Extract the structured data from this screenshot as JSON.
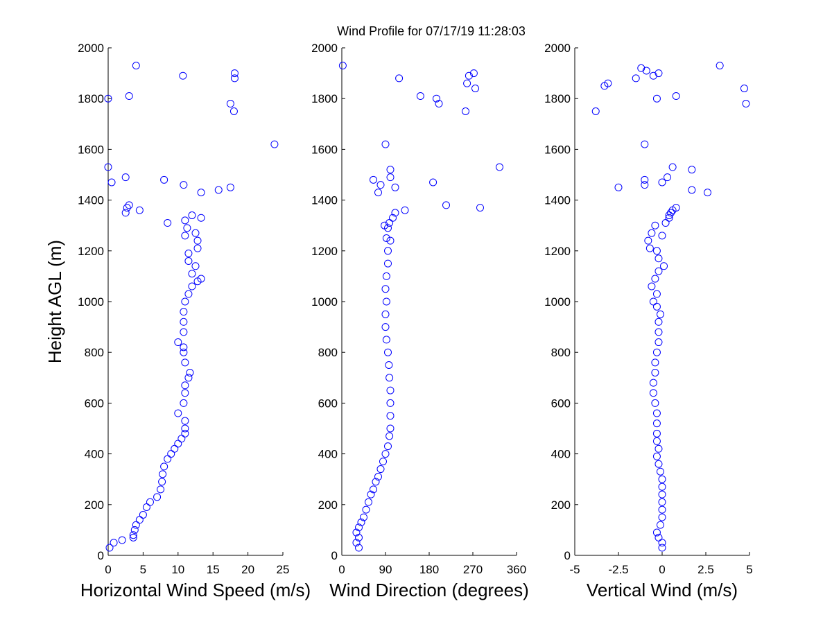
{
  "chart_data": [
    {
      "type": "scatter",
      "title": "Wind Profile for  07/17/19 11:28:03",
      "x_label": "Horizontal Wind Speed (m/s)",
      "y_label": "Height AGL (m)",
      "color": "#0000ff",
      "xlim": [
        0,
        25
      ],
      "xticks": [
        0,
        5,
        10,
        15,
        20,
        25
      ],
      "ylim": [
        0,
        2000
      ],
      "yticks": [
        0,
        200,
        400,
        600,
        800,
        1000,
        1200,
        1400,
        1600,
        1800,
        2000
      ],
      "x": [
        0.2,
        0.8,
        2,
        3.6,
        3.6,
        3.8,
        4,
        4.5,
        5,
        5.5,
        6,
        7,
        7.5,
        7.7,
        7.8,
        8,
        8.5,
        9,
        9.5,
        10,
        10.5,
        11,
        11,
        11,
        10,
        10.8,
        11,
        11,
        11.5,
        11.7,
        11,
        10.8,
        10.8,
        10,
        10.8,
        10.8,
        10.8,
        11,
        11.5,
        12,
        12.8,
        13.3,
        12,
        12.5,
        11.5,
        11.5,
        12.8,
        12.8,
        11,
        12.5,
        11.3,
        11,
        12,
        13.3,
        8.5,
        2.5,
        2.7,
        3,
        4.5,
        13.3,
        15.8,
        17.5,
        10.8,
        0.5,
        8,
        2.5,
        0,
        23.8,
        18,
        17.5,
        0,
        3,
        18.1,
        18.1,
        10.7,
        4
      ],
      "y": [
        30,
        50,
        60,
        70,
        80,
        100,
        120,
        140,
        160,
        190,
        210,
        230,
        260,
        290,
        320,
        350,
        380,
        400,
        420,
        440,
        460,
        480,
        500,
        530,
        560,
        600,
        640,
        670,
        700,
        720,
        760,
        800,
        820,
        840,
        880,
        920,
        960,
        1000,
        1030,
        1060,
        1080,
        1090,
        1110,
        1140,
        1160,
        1190,
        1210,
        1240,
        1260,
        1270,
        1290,
        1320,
        1340,
        1330,
        1310,
        1350,
        1370,
        1380,
        1360,
        1430,
        1440,
        1450,
        1460,
        1470,
        1480,
        1490,
        1530,
        1620,
        1750,
        1780,
        1800,
        1810,
        1880,
        1900,
        1890,
        1930
      ]
    },
    {
      "type": "scatter",
      "x_label": "Wind Direction (degrees)",
      "color": "#0000ff",
      "xlim": [
        0,
        360
      ],
      "xticks": [
        0,
        90,
        180,
        270,
        360
      ],
      "ylim": [
        0,
        2000
      ],
      "yticks": [
        0,
        200,
        400,
        600,
        800,
        1000,
        1200,
        1400,
        1600,
        1800,
        2000
      ],
      "x": [
        35,
        30,
        35,
        30,
        35,
        40,
        45,
        50,
        55,
        60,
        65,
        70,
        75,
        80,
        85,
        90,
        95,
        98,
        100,
        100,
        100,
        100,
        98,
        97,
        95,
        92,
        90,
        90,
        92,
        90,
        92,
        95,
        95,
        92,
        95,
        98,
        105,
        110,
        130,
        88,
        100,
        215,
        285,
        75,
        110,
        80,
        65,
        188,
        100,
        100,
        325,
        90,
        255,
        200,
        195,
        162,
        118,
        258,
        262,
        272,
        275,
        2
      ],
      "y": [
        30,
        50,
        70,
        90,
        110,
        130,
        150,
        180,
        210,
        240,
        260,
        290,
        310,
        340,
        370,
        400,
        430,
        470,
        500,
        550,
        600,
        650,
        700,
        750,
        800,
        850,
        900,
        950,
        1000,
        1050,
        1100,
        1150,
        1200,
        1250,
        1290,
        1310,
        1330,
        1350,
        1360,
        1300,
        1240,
        1380,
        1370,
        1430,
        1450,
        1460,
        1480,
        1470,
        1490,
        1520,
        1530,
        1620,
        1750,
        1780,
        1800,
        1810,
        1880,
        1860,
        1890,
        1900,
        1840,
        1930
      ]
    },
    {
      "type": "scatter",
      "x_label": "Vertical Wind (m/s)",
      "color": "#0000ff",
      "xlim": [
        -5,
        5
      ],
      "xticks": [
        -5,
        -2.5,
        0,
        2.5,
        5
      ],
      "ylim": [
        0,
        2000
      ],
      "yticks": [
        0,
        200,
        400,
        600,
        800,
        1000,
        1200,
        1400,
        1600,
        1800,
        2000
      ],
      "x": [
        0,
        0,
        -0.2,
        -0.3,
        -0.1,
        0,
        0,
        0,
        0,
        0,
        0,
        -0.1,
        -0.2,
        -0.3,
        -0.2,
        -0.3,
        -0.3,
        -0.3,
        -0.3,
        -0.4,
        -0.5,
        -0.5,
        -0.4,
        -0.4,
        -0.3,
        -0.2,
        -0.2,
        -0.2,
        -0.1,
        -0.3,
        -0.5,
        -0.3,
        -0.6,
        -0.4,
        -0.2,
        0.1,
        -0.2,
        -0.3,
        -0.7,
        -0.8,
        -0.6,
        -0.4,
        0,
        0.2,
        0.4,
        0.5,
        0.8,
        0.6,
        0.4,
        -2.5,
        -1,
        -1,
        0.3,
        0,
        0.6,
        1.7,
        1.7,
        2.6,
        -1,
        -3.8,
        4.8,
        4.7,
        -0.3,
        0.8,
        -3.3,
        -3.1,
        -1.5,
        -0.5,
        -1.2,
        -0.9,
        -0.2,
        3.3
      ],
      "y": [
        30,
        50,
        70,
        90,
        120,
        150,
        180,
        210,
        240,
        270,
        300,
        330,
        360,
        390,
        420,
        450,
        480,
        520,
        560,
        600,
        640,
        680,
        720,
        760,
        800,
        840,
        880,
        920,
        950,
        980,
        1000,
        1030,
        1060,
        1090,
        1120,
        1140,
        1170,
        1200,
        1210,
        1240,
        1270,
        1300,
        1260,
        1310,
        1340,
        1350,
        1370,
        1360,
        1330,
        1450,
        1460,
        1480,
        1490,
        1470,
        1530,
        1520,
        1440,
        1430,
        1620,
        1750,
        1780,
        1840,
        1800,
        1810,
        1850,
        1860,
        1880,
        1890,
        1920,
        1910,
        1900,
        1930
      ]
    }
  ]
}
